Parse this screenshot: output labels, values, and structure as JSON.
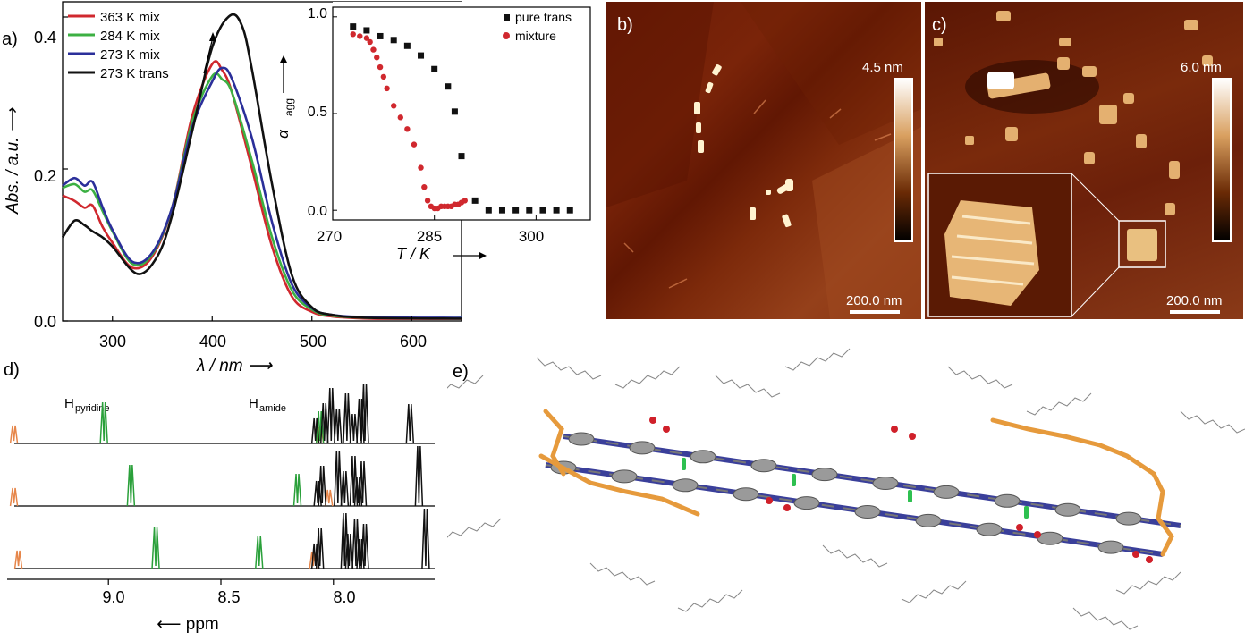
{
  "panels": {
    "a": "a)",
    "b": "b)",
    "c": "c)",
    "d": "d)",
    "e": "e)"
  },
  "panel_a": {
    "y_label": "Abs. / a.u. ⟶",
    "x_label": "λ / nm ⟶",
    "x_ticks": [
      "300",
      "400",
      "500",
      "600"
    ],
    "y_ticks": [
      "0.0",
      "0.2",
      "0.4"
    ],
    "legend": [
      "363 K mix",
      "284 K mix",
      "273 K mix",
      "273 K trans"
    ],
    "colors": [
      "#d0282e",
      "#3cb043",
      "#2b2f9a",
      "#111111"
    ]
  },
  "panel_a_inset": {
    "y_label": "α",
    "y_label_sub": "agg",
    "x_label": "T / K",
    "x_ticks": [
      "270",
      "285",
      "300"
    ],
    "y_ticks": [
      "1.0",
      "0.5",
      "0.0"
    ],
    "legend": [
      "pure trans",
      "mixture"
    ]
  },
  "panel_b": {
    "scale_value": "4.5 nm",
    "scalebar": "200.0 nm"
  },
  "panel_c": {
    "scale_value": "6.0 nm",
    "scalebar": "200.0 nm"
  },
  "panel_d": {
    "label_pyridine": "H",
    "label_pyridine_sub": "pyridine",
    "label_amide": "H",
    "label_amide_sub": "amide",
    "x_ticks": [
      "9.0",
      "8.5",
      "8.0"
    ],
    "x_label": "⟵ ppm"
  },
  "chart_data": [
    {
      "type": "line",
      "panel": "a",
      "xlabel": "λ / nm",
      "ylabel": "Abs. / a.u.",
      "xlim": [
        250,
        650
      ],
      "ylim": [
        0,
        0.42
      ],
      "series": [
        {
          "name": "363 K mix",
          "color": "#d0282e",
          "x": [
            250,
            262,
            272,
            280,
            290,
            300,
            320,
            340,
            360,
            380,
            400,
            410,
            420,
            440,
            460,
            480,
            500,
            520,
            560,
            650
          ],
          "y": [
            0.165,
            0.158,
            0.149,
            0.152,
            0.124,
            0.103,
            0.07,
            0.085,
            0.15,
            0.27,
            0.338,
            0.33,
            0.3,
            0.2,
            0.098,
            0.032,
            0.012,
            0.006,
            0.003,
            0.003
          ]
        },
        {
          "name": "284 K mix",
          "color": "#3cb043",
          "x": [
            250,
            262,
            272,
            280,
            290,
            300,
            320,
            340,
            360,
            380,
            400,
            410,
            420,
            440,
            460,
            480,
            500,
            520,
            560,
            650
          ],
          "y": [
            0.175,
            0.18,
            0.17,
            0.172,
            0.145,
            0.118,
            0.075,
            0.088,
            0.15,
            0.262,
            0.322,
            0.318,
            0.3,
            0.21,
            0.11,
            0.04,
            0.015,
            0.007,
            0.004,
            0.004
          ]
        },
        {
          "name": "273 K mix",
          "color": "#2b2f9a",
          "x": [
            250,
            262,
            272,
            280,
            290,
            300,
            320,
            340,
            360,
            380,
            400,
            410,
            420,
            440,
            460,
            480,
            500,
            520,
            560,
            650
          ],
          "y": [
            0.178,
            0.188,
            0.178,
            0.183,
            0.15,
            0.12,
            0.078,
            0.09,
            0.15,
            0.255,
            0.315,
            0.333,
            0.318,
            0.24,
            0.13,
            0.048,
            0.017,
            0.008,
            0.005,
            0.004
          ]
        },
        {
          "name": "273 K trans",
          "color": "#111111",
          "x": [
            250,
            262,
            272,
            280,
            290,
            300,
            325,
            345,
            360,
            380,
            400,
            418,
            430,
            440,
            460,
            480,
            500,
            520,
            560,
            650
          ],
          "y": [
            0.11,
            0.132,
            0.126,
            0.118,
            0.11,
            0.098,
            0.062,
            0.085,
            0.14,
            0.25,
            0.36,
            0.402,
            0.388,
            0.33,
            0.18,
            0.06,
            0.018,
            0.008,
            0.004,
            0.003
          ]
        }
      ]
    },
    {
      "type": "scatter",
      "panel": "a-inset",
      "xlabel": "T / K",
      "ylabel": "α_agg",
      "xlim": [
        270,
        308
      ],
      "ylim": [
        -0.05,
        1.05
      ],
      "series": [
        {
          "name": "pure trans",
          "marker": "square",
          "color": "#111111",
          "x": [
            273,
            275,
            277,
            279,
            281,
            283,
            285,
            287,
            288,
            289,
            291,
            293,
            295,
            297,
            299,
            301,
            303,
            305
          ],
          "y": [
            0.95,
            0.93,
            0.9,
            0.88,
            0.85,
            0.8,
            0.73,
            0.64,
            0.51,
            0.28,
            0.05,
            0.0,
            0.0,
            0.0,
            0.0,
            0.0,
            0.0,
            0.0
          ]
        },
        {
          "name": "mixture",
          "marker": "circle",
          "color": "#d0282e",
          "x": [
            273,
            274,
            275,
            275.5,
            276,
            276.5,
            277,
            277.5,
            278,
            279,
            280,
            281,
            282,
            283,
            283.5,
            284,
            284.5,
            285,
            285.5,
            286,
            286.5,
            287,
            287.5,
            288,
            288.5,
            289,
            289.5
          ],
          "y": [
            0.91,
            0.9,
            0.89,
            0.87,
            0.83,
            0.79,
            0.74,
            0.69,
            0.63,
            0.54,
            0.48,
            0.42,
            0.34,
            0.22,
            0.12,
            0.05,
            0.02,
            0.01,
            0.01,
            0.02,
            0.02,
            0.02,
            0.02,
            0.03,
            0.03,
            0.04,
            0.05
          ]
        }
      ]
    },
    {
      "type": "line",
      "panel": "d",
      "xlabel": "ppm",
      "xlim": [
        9.45,
        7.55
      ],
      "series": [
        {
          "name": "top",
          "orange": [
            9.42,
            8.06
          ],
          "green": [
            9.02,
            8.06
          ],
          "black": [
            8.08,
            8.04,
            8.01,
            7.98,
            7.94,
            7.91,
            7.88,
            7.86,
            7.66
          ]
        },
        {
          "name": "middle",
          "orange": [
            9.42,
            8.02
          ],
          "green": [
            8.9,
            8.16
          ],
          "black": [
            8.07,
            8.05,
            7.98,
            7.95,
            7.91,
            7.89,
            7.87,
            7.62
          ]
        },
        {
          "name": "bottom",
          "orange": [
            9.4,
            8.09
          ],
          "green": [
            8.79,
            8.33
          ],
          "black": [
            8.08,
            8.06,
            7.95,
            7.93,
            7.9,
            7.88,
            7.86,
            7.59
          ]
        }
      ]
    }
  ]
}
